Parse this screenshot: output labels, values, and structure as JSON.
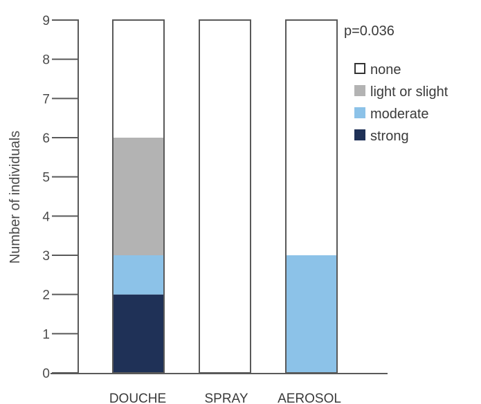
{
  "chart_data": {
    "type": "bar",
    "stacked": true,
    "title": "",
    "xlabel": "",
    "ylabel": "Number of individuals",
    "ylim": [
      0,
      9
    ],
    "yticks": [
      0,
      1,
      2,
      3,
      4,
      5,
      6,
      7,
      8,
      9
    ],
    "categories": [
      "DOUCHE",
      "SPRAY",
      "AEROSOL"
    ],
    "series": [
      {
        "name": "strong",
        "color": "#1f3157",
        "values": [
          2,
          0,
          0
        ]
      },
      {
        "name": "moderate",
        "color": "#8cc2e8",
        "values": [
          1,
          0,
          3
        ]
      },
      {
        "name": "light or slight",
        "color": "#b3b3b3",
        "values": [
          3,
          0,
          0
        ]
      },
      {
        "name": "none",
        "color": "#ffffff",
        "values": [
          3,
          9,
          6
        ]
      }
    ],
    "legend": {
      "position": "top-right",
      "items": [
        "none",
        "light or slight",
        "moderate",
        "strong"
      ]
    },
    "annotation": "p=0.036",
    "grid": false
  }
}
